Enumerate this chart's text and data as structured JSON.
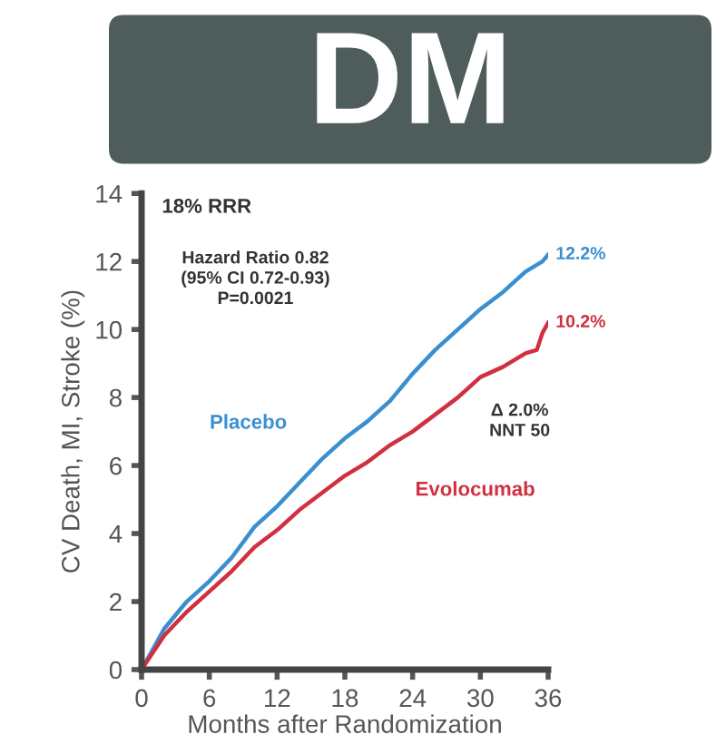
{
  "chart_data": {
    "type": "line",
    "title": "DM",
    "xlabel": "Months after Randomization",
    "ylabel": "CV Death, MI, Stroke (%)",
    "x": [
      0,
      2,
      4,
      6,
      8,
      10,
      12,
      14,
      16,
      18,
      20,
      22,
      24,
      26,
      28,
      30,
      32,
      34,
      35,
      35.5,
      36
    ],
    "series": [
      {
        "name": "Placebo",
        "color": "#3a8fd0",
        "values": [
          0,
          1.2,
          2.0,
          2.6,
          3.3,
          4.2,
          4.8,
          5.5,
          6.2,
          6.8,
          7.3,
          7.9,
          8.7,
          9.4,
          10.0,
          10.6,
          11.1,
          11.7,
          11.9,
          12.0,
          12.2
        ]
      },
      {
        "name": "Evolocumab",
        "color": "#d03040",
        "values": [
          0,
          1.0,
          1.7,
          2.3,
          2.9,
          3.6,
          4.1,
          4.7,
          5.2,
          5.7,
          6.1,
          6.6,
          7.0,
          7.5,
          8.0,
          8.6,
          8.9,
          9.3,
          9.4,
          9.9,
          10.2
        ]
      }
    ],
    "annotations": [
      "18% RRR",
      "Hazard Ratio 0.82\n(95% CI 0.72-0.93)\nP=0.0021",
      "Δ 2.0%\nNNT 50",
      {
        "text": "12.2%",
        "x": 36,
        "y": 12.2
      },
      {
        "text": "10.2%",
        "x": 36,
        "y": 10.2
      }
    ],
    "xlim": [
      0,
      36
    ],
    "ylim": [
      0,
      14
    ],
    "xticks": [
      0,
      6,
      12,
      18,
      24,
      30,
      36
    ],
    "yticks": [
      0,
      2,
      4,
      6,
      8,
      10,
      12,
      14
    ],
    "grid": false,
    "legend": false,
    "marker": "none",
    "line_style": "solid"
  }
}
